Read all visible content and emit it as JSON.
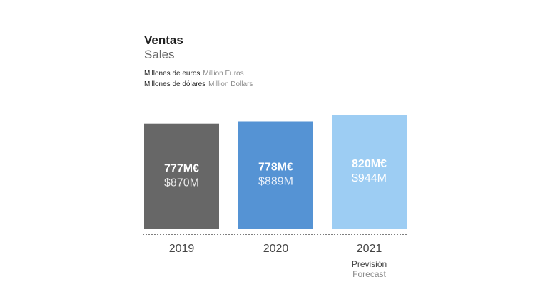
{
  "header": {
    "title": "Ventas",
    "subtitle": "Sales",
    "units": [
      {
        "es": "Millones de euros",
        "en": "Million Euros"
      },
      {
        "es": "Millones de dólares",
        "en": "Million Dollars"
      }
    ]
  },
  "chart_data": {
    "type": "bar",
    "title": "Ventas",
    "subtitle": "Sales",
    "categories": [
      "2019",
      "2020",
      "2021"
    ],
    "series": [
      {
        "name": "Millones de euros",
        "values": [
          777,
          778,
          820
        ]
      },
      {
        "name": "Millones de dólares",
        "values": [
          870,
          889,
          944
        ]
      }
    ],
    "bar_value_series": 1,
    "data_labels": {
      "euros": [
        "777M€",
        "778M€",
        "820M€"
      ],
      "dollars": [
        "$870M",
        "$889M",
        "$944M"
      ]
    },
    "category_notes": [
      "",
      "",
      "Previsión"
    ],
    "category_notes_en": [
      "",
      "",
      "Forecast"
    ],
    "colors": [
      "#676767",
      "#5593d4",
      "#9dcdf3"
    ],
    "label_colors_main": [
      "#ffffff",
      "#ffffff",
      "#ffffff"
    ],
    "label_colors_sub": [
      "#e6e6e6",
      "#e6eef9",
      "#ffffff"
    ],
    "baseline_style": "dotted",
    "ylim": [
      0,
      1010
    ],
    "grid": false
  }
}
